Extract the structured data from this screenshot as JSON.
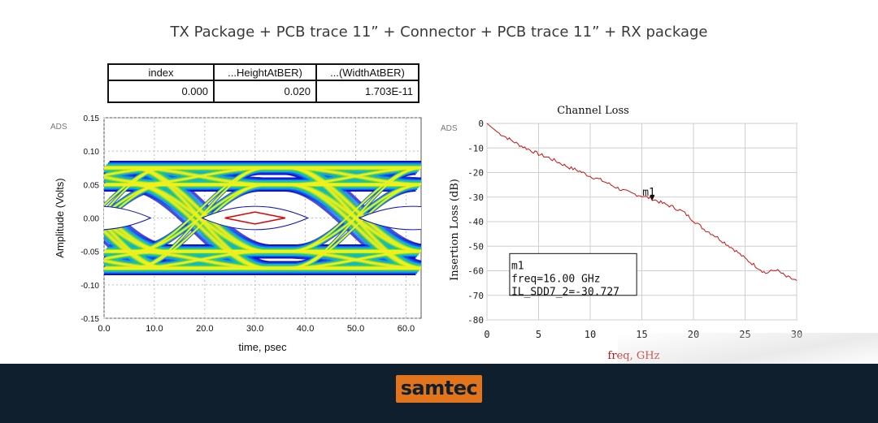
{
  "title": "TX Package + PCB trace 11”  + Connector + PCB trace 11”  + RX package",
  "table": {
    "headers": [
      "index",
      "...HeightAtBER)",
      "...(WidthAtBER)"
    ],
    "values": [
      "0.000",
      "0.020",
      "1.703E-11"
    ]
  },
  "chart_data": [
    {
      "type": "eye",
      "corner_label": "ADS",
      "xlabel": "time, psec",
      "ylabel": "Amplitude (Volts)",
      "xlim": [
        0,
        63
      ],
      "ylim": [
        -0.15,
        0.15
      ],
      "xticks": [
        "0.0",
        "10.0",
        "20.0",
        "30.0",
        "40.0",
        "50.0",
        "60.0"
      ],
      "yticks": [
        "0.15",
        "0.10",
        "0.05",
        "0.00",
        "-0.05",
        "-0.10",
        "-0.15"
      ],
      "eye_levels": [
        -0.075,
        -0.05,
        0.05,
        0.075
      ],
      "transition_times": [
        -1,
        19,
        50
      ],
      "unit_interval": 31.25,
      "mask": {
        "center_x": 30,
        "half_width": 6,
        "half_height": 0.009,
        "color": "#e00000"
      },
      "colors": [
        "#1010c8",
        "#1a5cf0",
        "#10b8e0",
        "#20d070",
        "#a8e020",
        "#f0f020"
      ]
    },
    {
      "type": "line",
      "title": "Channel Loss",
      "corner_label": "ADS",
      "xlabel": "freq, GHz",
      "ylabel": "Insertion Loss (dB)",
      "xlim": [
        0,
        30
      ],
      "ylim": [
        -80,
        0
      ],
      "xticks": [
        "0",
        "5",
        "10",
        "15",
        "20",
        "25",
        "30"
      ],
      "yticks": [
        "0",
        "-10",
        "-20",
        "-30",
        "-40",
        "-50",
        "-60",
        "-70",
        "-80"
      ],
      "series": [
        {
          "color": "#d01010",
          "x": [
            0,
            1,
            2,
            3,
            4,
            5,
            6,
            7,
            8,
            9,
            10,
            11,
            12,
            13,
            14,
            15,
            16,
            17,
            18,
            19,
            20,
            21,
            22,
            23,
            24,
            25,
            26,
            27,
            28,
            29,
            30
          ],
          "y": [
            0,
            -3.5,
            -6,
            -8.5,
            -10.5,
            -12.5,
            -14,
            -16,
            -18,
            -19.5,
            -21.5,
            -23,
            -25,
            -27,
            -28.5,
            -29.5,
            -30.7,
            -32.5,
            -34,
            -36,
            -39.5,
            -43,
            -45.5,
            -48.5,
            -51.5,
            -55,
            -58,
            -61,
            -59.5,
            -62.5,
            -64
          ]
        }
      ],
      "marker": {
        "label": "m1",
        "x": 16,
        "y": -30.727
      },
      "marker_box": [
        "m1",
        "freq=16.00 GHz",
        "IL_SDD7_2=-30.727"
      ]
    }
  ]
}
